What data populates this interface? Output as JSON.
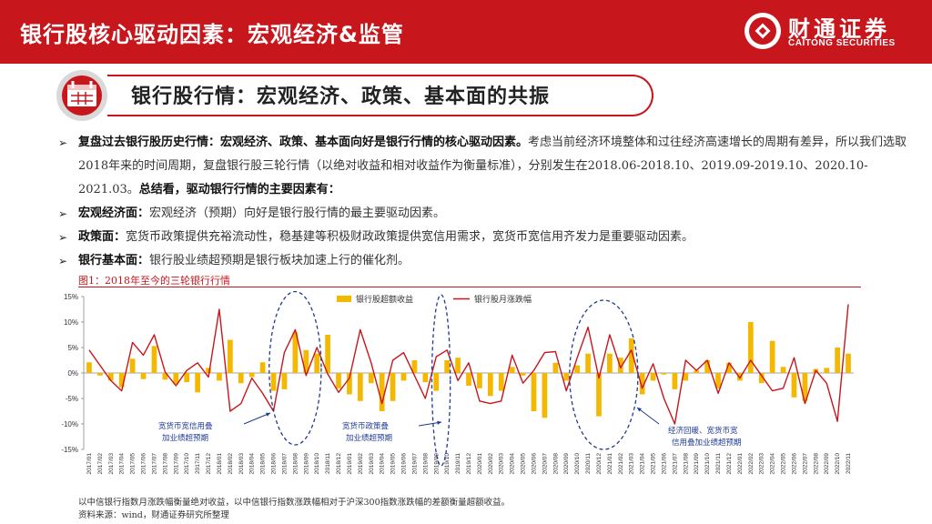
{
  "header": {
    "title": "银行股核心驱动因素：宏观经济&监管"
  },
  "logo": {
    "cn": "财通证券",
    "en": "CAITONG SECURITIES"
  },
  "section": {
    "title": "银行股行情：宏观经济、政策、基本面的共振"
  },
  "bullets": [
    {
      "bold": "复盘过去银行股历史行情：宏观经济、政策、基本面向好是银行行情的核心驱动因素。",
      "text": "考虑当前经济环境整体和过往经济高速增长的周期有差异，所以我们选取2018年来的时间周期，复盘银行股三轮行情（以绝对收益和相对收益作为衡量标准），分别发生在2018.06-2018.10、2019.09-2019.10、2020.10-2021.03。",
      "bold2": "总结看，驱动银行行情的主要因素有："
    },
    {
      "bold": "宏观经济面：",
      "text": "宏观经济（预期）向好是银行股行情的最主要驱动因素。"
    },
    {
      "bold": "政策面：",
      "text": "宽货币政策提供充裕流动性，稳基建等积极财政政策提供宽信用需求，宽货币宽信用齐发力是重要驱动因素。"
    },
    {
      "bold": "银行基本面：",
      "text": "银行股业绩超预期是银行板块加速上行的催化剂。"
    }
  ],
  "figure": {
    "title": "图1：2018年至今的三轮银行行情",
    "note1": "以中信银行指数月涨跌幅衡量绝对收益，以中信银行指数涨跌幅相对于沪深300指数涨跌幅的差额衡量超额收益。",
    "note2": "资料来源：wind，财通证券研究所整理"
  },
  "colors": {
    "brand": "#c8161d",
    "bar": "#f5b800",
    "line": "#c8161d",
    "ellipse": "#1f3a93"
  },
  "chart_data": {
    "type": "bar+line",
    "y_ticks": [
      "15%",
      "10%",
      "5%",
      "0%",
      "-5%",
      "-10%",
      "-15%"
    ],
    "ylim": [
      -15,
      15
    ],
    "categories": [
      "2017/01",
      "2017/02",
      "2017/03",
      "2017/04",
      "2017/05",
      "2017/06",
      "2017/07",
      "2017/08",
      "2017/09",
      "2017/10",
      "2017/11",
      "2017/12",
      "2018/01",
      "2018/02",
      "2018/03",
      "2018/04",
      "2018/05",
      "2018/06",
      "2018/07",
      "2018/08",
      "2018/09",
      "2018/10",
      "2018/11",
      "2018/12",
      "2019/01",
      "2019/02",
      "2019/03",
      "2019/04",
      "2019/05",
      "2019/06",
      "2019/07",
      "2019/08",
      "2019/09",
      "2019/10",
      "2019/11",
      "2019/12",
      "2020/01",
      "2020/02",
      "2020/03",
      "2020/04",
      "2020/05",
      "2020/06",
      "2020/07",
      "2020/08",
      "2020/09",
      "2020/10",
      "2020/11",
      "2020/12",
      "2021/01",
      "2021/02",
      "2021/03",
      "2021/04",
      "2021/05",
      "2021/06",
      "2021/07",
      "2021/08",
      "2021/09",
      "2021/10",
      "2021/11",
      "2021/12",
      "2022/01",
      "2022/02",
      "2022/03",
      "2022/04",
      "2022/05",
      "2022/06",
      "2022/07",
      "2022/08",
      "2022/09",
      "2022/10",
      "2022/11"
    ],
    "series": [
      {
        "name": "银行股超额收益",
        "kind": "bar",
        "values": [
          2.1,
          -0.5,
          -1.5,
          -2.8,
          2.8,
          -1.2,
          5.3,
          -1.3,
          -2.2,
          -1.8,
          -3.8,
          1.0,
          -1.5,
          6.5,
          -2.0,
          -0.8,
          2.1,
          -3.5,
          -3.2,
          8.0,
          4.5,
          3.8,
          7.5,
          -3.0,
          -4.2,
          -5.5,
          -2.0,
          -7.5,
          -5.5,
          -1.5,
          2.5,
          -1.8,
          -3.5,
          2.5,
          3.0,
          -2.5,
          -3.0,
          -4.5,
          -3.5,
          1.2,
          -0.5,
          -7.5,
          -8.8,
          2.0,
          -1.5,
          1.5,
          3.8,
          -8.5,
          3.8,
          3.0,
          6.8,
          -4.2,
          -1.5,
          -0.3,
          -3.2,
          -1.5,
          0.5,
          2.5,
          -3.0,
          2.0,
          -1.5,
          10.0,
          -2.0,
          6.3,
          1.2,
          -4.8,
          -5.5,
          0.8,
          1.0,
          5.0,
          3.8
        ]
      },
      {
        "name": "银行股月涨跌幅",
        "kind": "line",
        "values": [
          4.5,
          1.5,
          -1.5,
          -3.5,
          6.0,
          3.5,
          7.5,
          0.2,
          -2.5,
          0.5,
          2.0,
          -0.8,
          12.5,
          -7.5,
          -6.0,
          -1.0,
          -4.0,
          -7.5,
          4.0,
          8.5,
          -0.5,
          5.0,
          -0.2,
          -3.8,
          -1.0,
          8.5,
          2.0,
          -6.0,
          2.5,
          4.0,
          -0.5,
          -5.0,
          3.2,
          4.5,
          -1.5,
          2.0,
          -5.5,
          -6.0,
          -5.5,
          3.5,
          -2.0,
          0.5,
          4.0,
          4.2,
          -3.5,
          3.0,
          9.0,
          -1.0,
          7.5,
          1.0,
          4.5,
          -3.0,
          1.8,
          -5.0,
          -10.0,
          2.5,
          0.5,
          2.5,
          -4.0,
          2.0,
          -1.0,
          2.5,
          -0.5,
          -3.5,
          -3.0,
          3.0,
          -6.0,
          0.5,
          -2.0,
          -9.5,
          13.5
        ]
      }
    ],
    "annotations": [
      {
        "text1": "宽货币宽信用叠",
        "text2": "加业绩超预期"
      },
      {
        "text1": "宽货币政策叠",
        "text2": "加业绩超预期"
      },
      {
        "text1": "经济回暖、宽货币宽",
        "text2": "信用叠加业绩超预期"
      }
    ]
  }
}
